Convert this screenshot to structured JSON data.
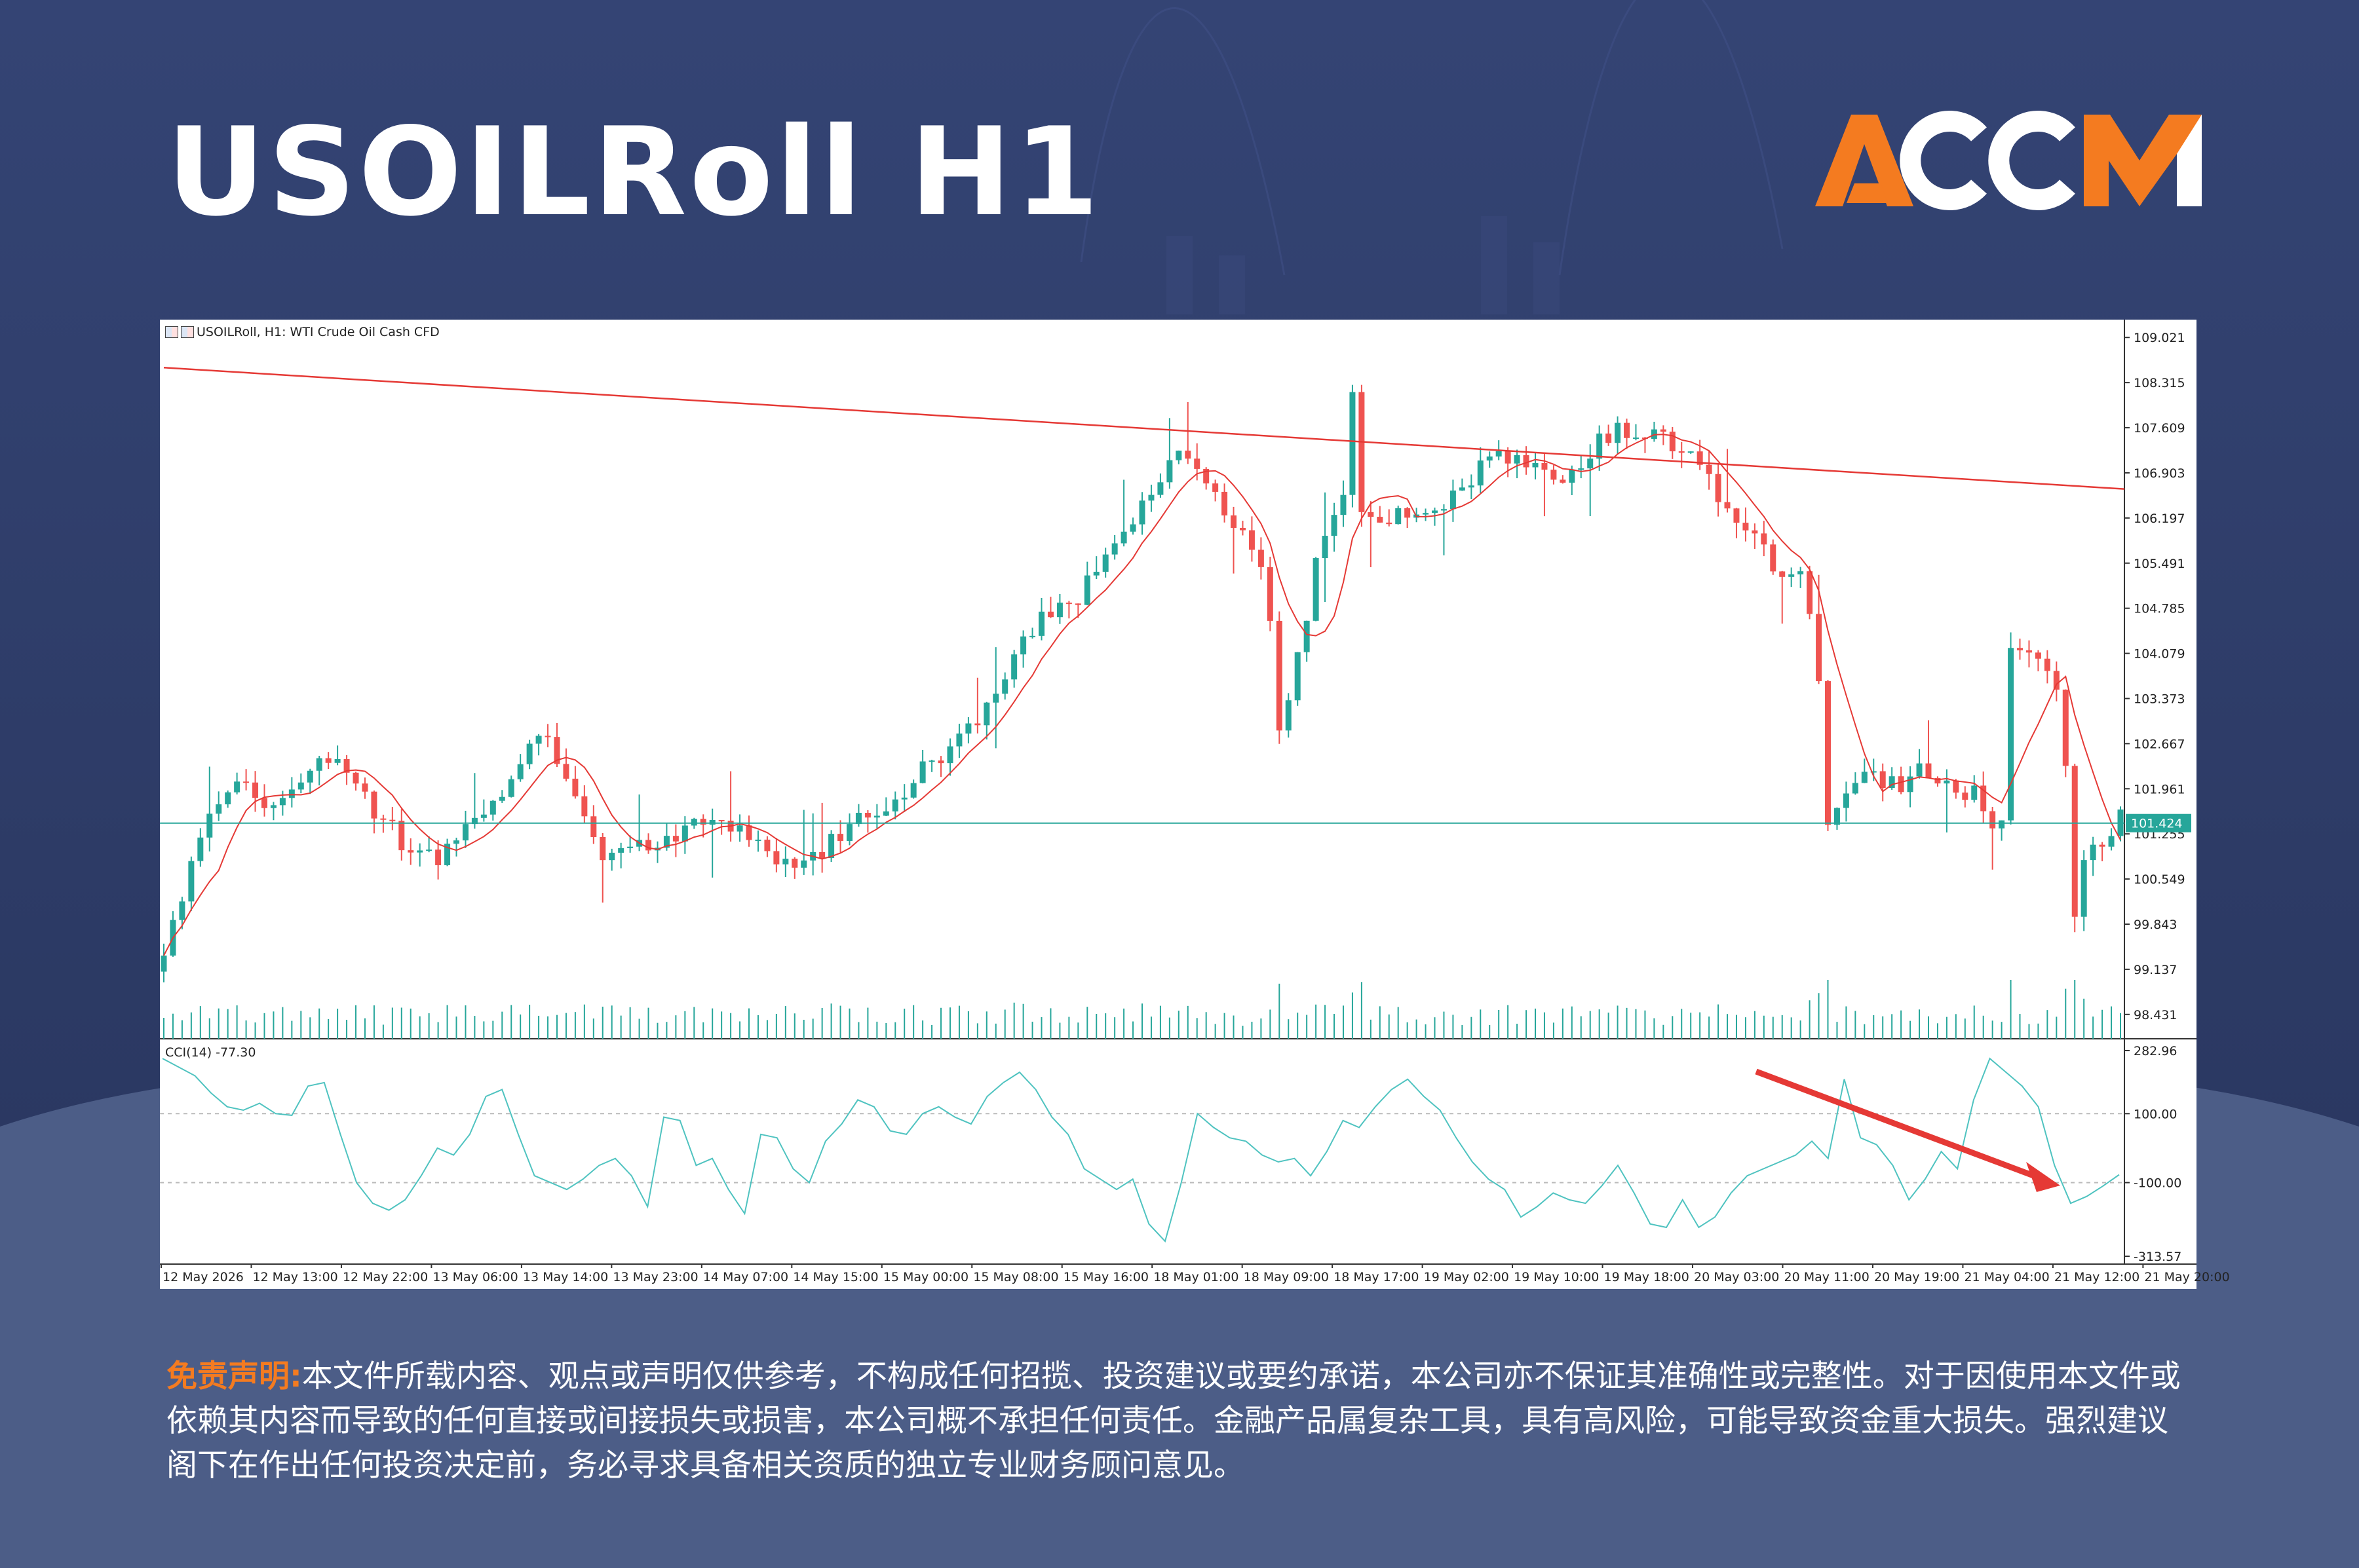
{
  "page": {
    "title": "USOILRoll H1",
    "logo_text": "ACCM",
    "disclaimer_label": "免责声明:",
    "disclaimer_text": "本文件所载内容、观点或声明仅供参考，不构成任何招揽、投资建议或要约承诺，本公司亦不保证其准确性或完整性。对于因使用本文件或依赖其内容而导致的任何直接或间接损失或损害，本公司概不承担任何责任。金融产品属复杂工具，具有高风险，可能导致资金重大损失。强烈建议阁下在作出任何投资决定前，务必寻求具备相关资质的独立专业财务顾问意见。",
    "colors": {
      "background": "#2f3d6a",
      "accent_orange": "#f47b20",
      "bull_candle": "#26a69a",
      "bear_candle": "#ef5350",
      "trendline": "#e53935",
      "cci_line": "#4fc3c0",
      "arrow": "#e53935"
    }
  },
  "chart_data": [
    {
      "type": "candlestick",
      "symbol_label": "USOILRoll, H1:  WTI Crude Oil Cash CFD",
      "timeframe": "H1",
      "price_axis_ticks": [
        "109.021",
        "108.315",
        "107.609",
        "106.903",
        "106.197",
        "105.491",
        "104.785",
        "104.079",
        "103.373",
        "102.667",
        "101.961",
        "101.255",
        "100.549",
        "99.843",
        "99.137",
        "98.431"
      ],
      "ylim": [
        98.05,
        109.3
      ],
      "x_tick_labels": [
        "12 May 2026",
        "12 May 13:00",
        "12 May 22:00",
        "13 May 06:00",
        "13 May 14:00",
        "13 May 23:00",
        "14 May 07:00",
        "14 May 15:00",
        "15 May 00:00",
        "15 May 08:00",
        "15 May 16:00",
        "18 May 01:00",
        "18 May 09:00",
        "18 May 17:00",
        "19 May 02:00",
        "19 May 10:00",
        "19 May 18:00",
        "20 May 03:00",
        "20 May 11:00",
        "20 May 19:00",
        "21 May 04:00",
        "21 May 12:00",
        "21 May 20:00"
      ],
      "current_price": "101.424",
      "current_price_value": 101.424,
      "price_path": [
        [
          0,
          99.3
        ],
        [
          3,
          100.8
        ],
        [
          6,
          101.8
        ],
        [
          9,
          102.1
        ],
        [
          12,
          101.6
        ],
        [
          15,
          102.0
        ],
        [
          18,
          102.5
        ],
        [
          21,
          101.9
        ],
        [
          24,
          101.5
        ],
        [
          27,
          101.0
        ],
        [
          30,
          100.8
        ],
        [
          33,
          101.3
        ],
        [
          36,
          101.8
        ],
        [
          39,
          102.4
        ],
        [
          42,
          102.8
        ],
        [
          45,
          101.9
        ],
        [
          48,
          101.0
        ],
        [
          51,
          100.9
        ],
        [
          54,
          101.2
        ],
        [
          57,
          101.3
        ],
        [
          60,
          101.4
        ],
        [
          63,
          101.5
        ],
        [
          66,
          101.0
        ],
        [
          69,
          100.7
        ],
        [
          72,
          100.9
        ],
        [
          75,
          101.5
        ],
        [
          78,
          101.4
        ],
        [
          81,
          101.9
        ],
        [
          84,
          102.4
        ],
        [
          87,
          102.7
        ],
        [
          90,
          103.3
        ],
        [
          93,
          104.1
        ],
        [
          96,
          104.7
        ],
        [
          99,
          104.8
        ],
        [
          102,
          105.3
        ],
        [
          105,
          105.9
        ],
        [
          108,
          106.6
        ],
        [
          111,
          107.1
        ],
        [
          114,
          106.8
        ],
        [
          117,
          106.2
        ],
        [
          120,
          105.5
        ],
        [
          121,
          104.7
        ],
        [
          122,
          102.8
        ],
        [
          123,
          103.4
        ],
        [
          126,
          105.4
        ],
        [
          129,
          106.7
        ],
        [
          130,
          108.1
        ],
        [
          131,
          106.4
        ],
        [
          134,
          106.2
        ],
        [
          137,
          106.2
        ],
        [
          140,
          106.5
        ],
        [
          143,
          106.8
        ],
        [
          146,
          107.2
        ],
        [
          149,
          107.0
        ],
        [
          152,
          106.8
        ],
        [
          155,
          107.1
        ],
        [
          158,
          107.5
        ],
        [
          161,
          107.6
        ],
        [
          164,
          107.4
        ],
        [
          167,
          107.1
        ],
        [
          170,
          106.6
        ],
        [
          173,
          106.1
        ],
        [
          176,
          105.4
        ],
        [
          179,
          105.5
        ],
        [
          181,
          103.8
        ],
        [
          182,
          101.5
        ],
        [
          184,
          101.8
        ],
        [
          187,
          102.2
        ],
        [
          190,
          102.0
        ],
        [
          193,
          102.3
        ],
        [
          195,
          102.0
        ],
        [
          198,
          101.9
        ],
        [
          200,
          101.2
        ],
        [
          201,
          101.5
        ],
        [
          202,
          104.1
        ],
        [
          205,
          104.1
        ],
        [
          207,
          103.4
        ],
        [
          208,
          102.2
        ],
        [
          209,
          99.9
        ],
        [
          210,
          100.8
        ],
        [
          212,
          101.2
        ],
        [
          214,
          101.5
        ]
      ],
      "sma_line": "red moving average following price",
      "trendline": {
        "from": [
          0,
          108.55
        ],
        "to": [
          214,
          106.65
        ]
      },
      "horizontal_line": 101.424
    },
    {
      "type": "line",
      "indicator": "CCI(14)",
      "label": "CCI(14) -77.30",
      "current_value": -77.3,
      "ylim": [
        -313.57,
        282.96
      ],
      "axis_ticks": [
        "282.96",
        "100.00",
        "-100.00",
        "-313.57"
      ],
      "levels": [
        100,
        -100
      ],
      "values": [
        260,
        235,
        210,
        160,
        120,
        110,
        130,
        100,
        95,
        180,
        190,
        40,
        -100,
        -160,
        -180,
        -150,
        -80,
        0,
        -20,
        40,
        150,
        170,
        40,
        -80,
        -100,
        -120,
        -90,
        -50,
        -30,
        -80,
        -170,
        90,
        80,
        -50,
        -30,
        -120,
        -190,
        40,
        30,
        -60,
        -100,
        20,
        70,
        140,
        120,
        50,
        40,
        100,
        120,
        90,
        70,
        150,
        190,
        220,
        170,
        90,
        40,
        -60,
        -90,
        -120,
        -90,
        -220,
        -270,
        -100,
        100,
        60,
        30,
        20,
        -20,
        -40,
        -30,
        -80,
        -10,
        80,
        60,
        120,
        170,
        200,
        150,
        110,
        30,
        -40,
        -90,
        -120,
        -200,
        -170,
        -130,
        -150,
        -160,
        -110,
        -50,
        -130,
        -220,
        -230,
        -150,
        -230,
        -200,
        -130,
        -80,
        -60,
        -40,
        -20,
        20,
        -30,
        200,
        30,
        10,
        -50,
        -150,
        -90,
        -10,
        -60,
        140,
        260,
        220,
        180,
        120,
        -50,
        -160,
        -140,
        -110,
        -77
      ]
    }
  ]
}
